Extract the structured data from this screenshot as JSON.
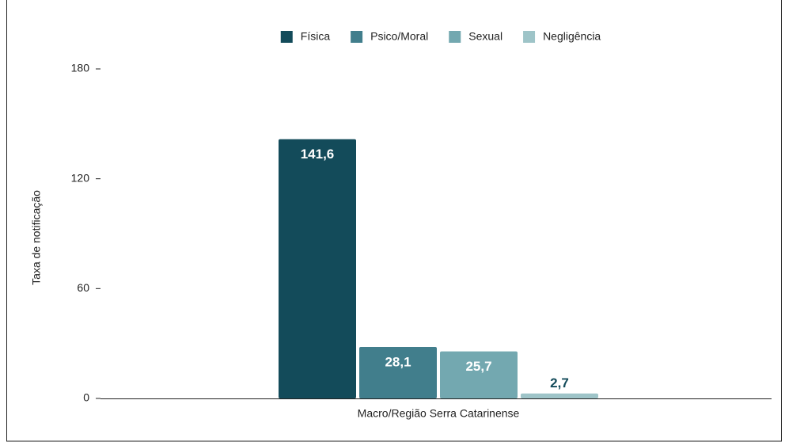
{
  "chart_data": {
    "type": "bar",
    "categories": [
      "Macro/Região Serra Catarinense"
    ],
    "y_label": "Taxa de notificação",
    "series": [
      {
        "name": "Física",
        "color": "#134b5a",
        "values": [
          141.6
        ],
        "value_labels": [
          "141,6"
        ]
      },
      {
        "name": "Psico/Moral",
        "color": "#417e8c",
        "values": [
          28.1
        ],
        "value_labels": [
          "28,1"
        ]
      },
      {
        "name": "Sexual",
        "color": "#73a8b0",
        "values": [
          25.7
        ],
        "value_labels": [
          "25,7"
        ]
      },
      {
        "name": "Negligência",
        "color": "#9ec4c8",
        "values": [
          2.7
        ],
        "value_labels": [
          "2,7"
        ]
      }
    ],
    "ylim": [
      0,
      180
    ],
    "yticks": [
      0,
      60,
      120,
      180
    ],
    "grid": false,
    "legend": "top"
  }
}
